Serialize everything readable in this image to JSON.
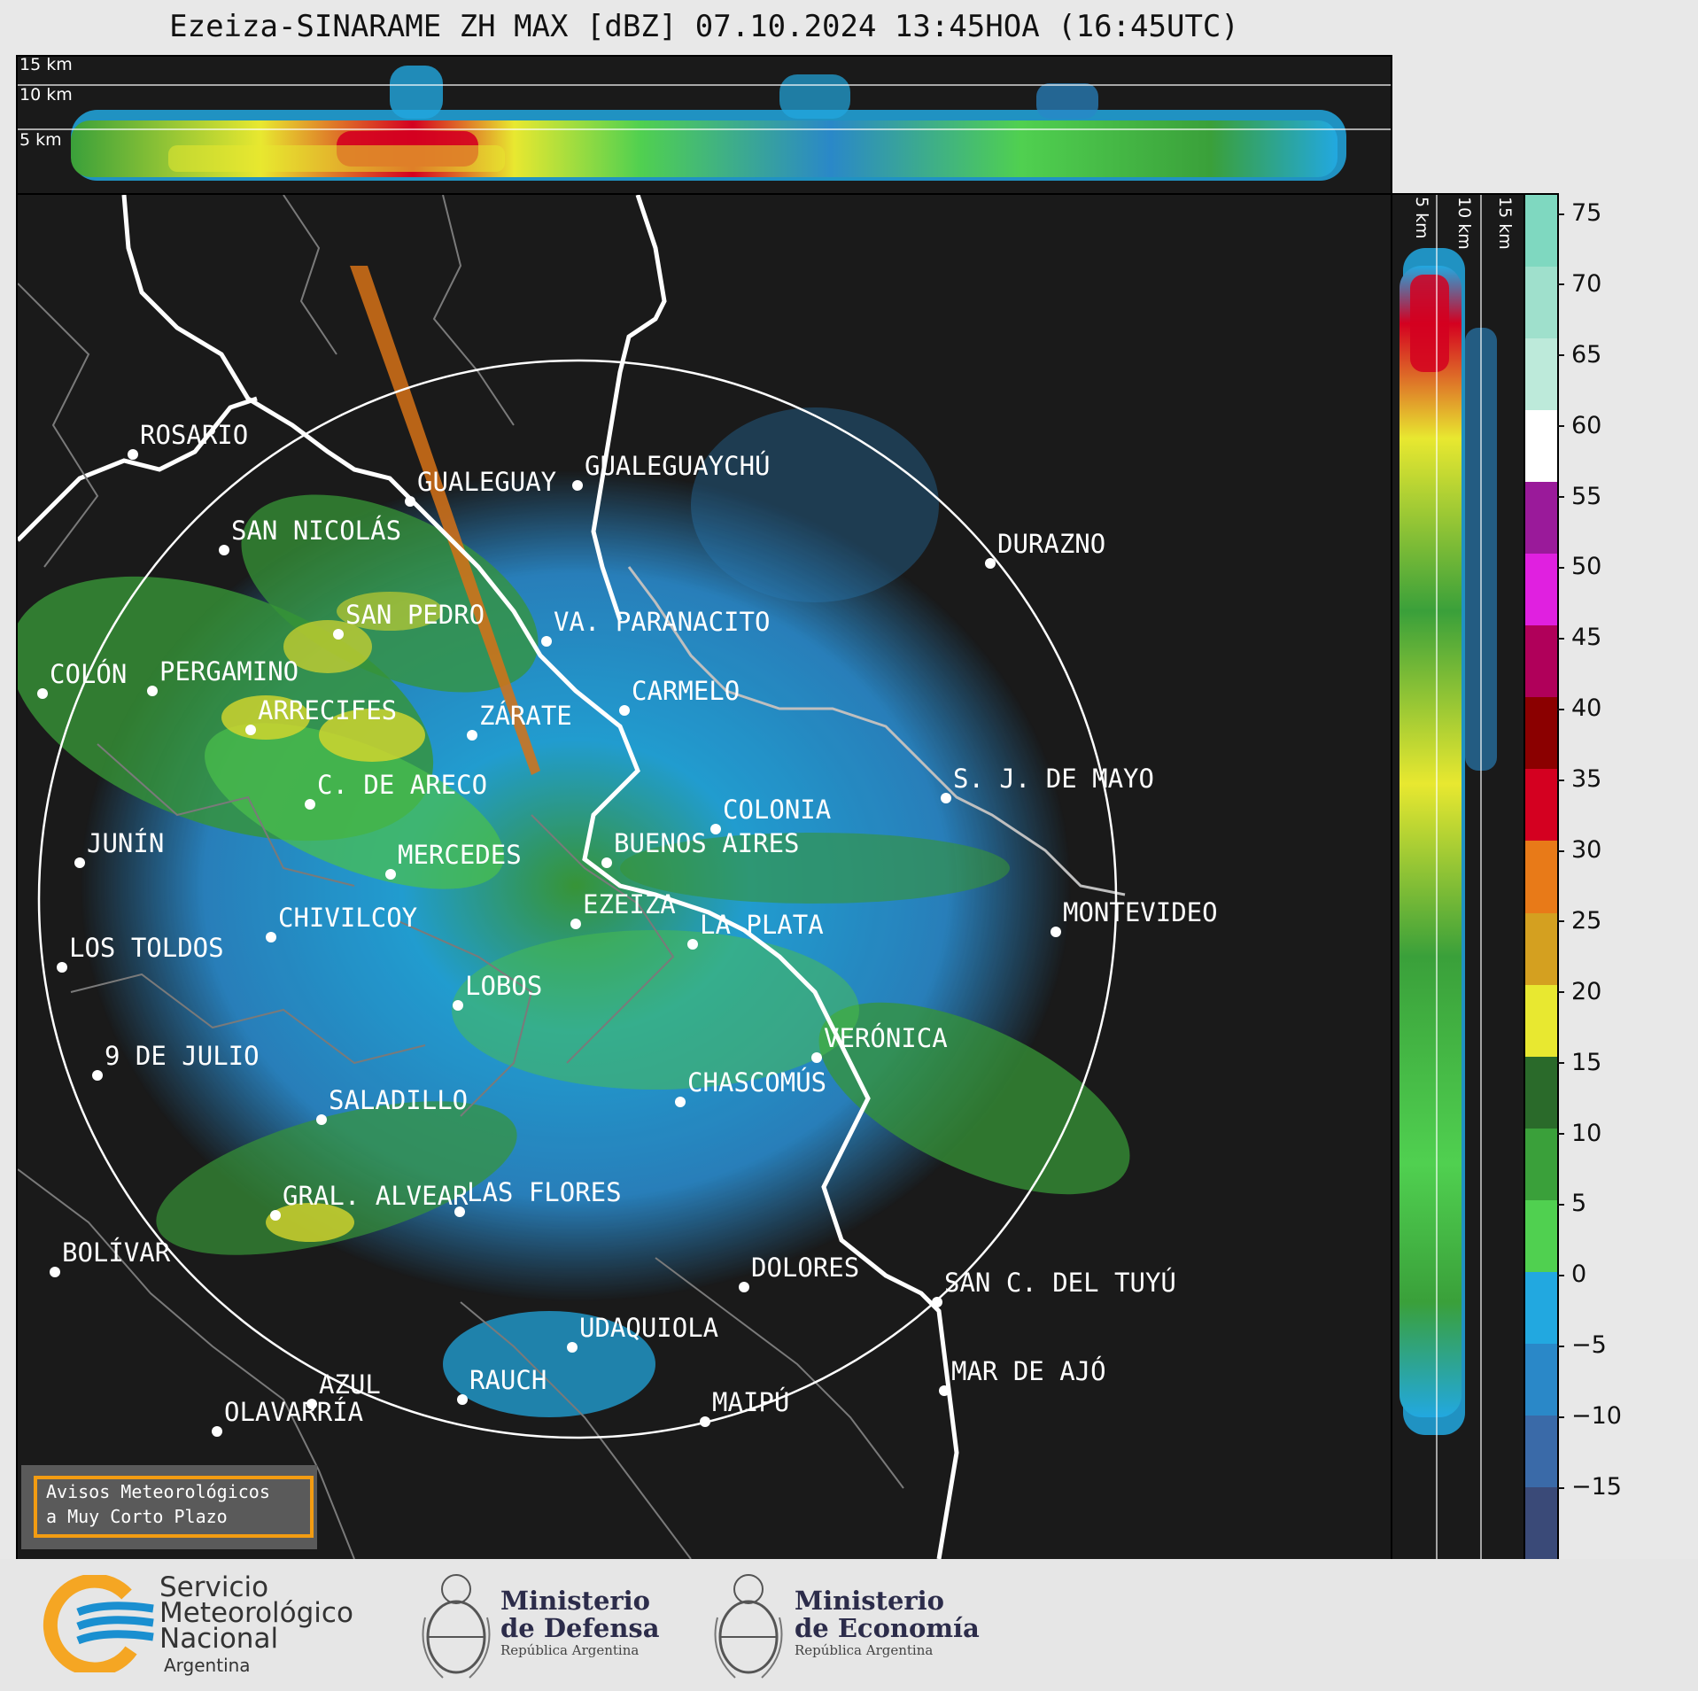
{
  "title": "Ezeiza-SINARAME ZH MAX [dBZ] 07.10.2024 13:45HOA (16:45UTC)",
  "height_labels": {
    "h15": "15 km",
    "h10": "10 km",
    "h5": "5 km"
  },
  "cities": [
    {
      "id": "rosario",
      "label": "ROSARIO"
    },
    {
      "id": "gualeguaychu",
      "label": "GUALEGUAYCHÚ"
    },
    {
      "id": "gualeguay",
      "label": "GUALEGUAY"
    },
    {
      "id": "san-nicolas",
      "label": "SAN NICOLÁS"
    },
    {
      "id": "durazno",
      "label": "DURAZNO"
    },
    {
      "id": "san-pedro",
      "label": "SAN PEDRO"
    },
    {
      "id": "va-paranacito",
      "label": "VA. PARANACITO"
    },
    {
      "id": "colon",
      "label": "COLÓN"
    },
    {
      "id": "pergamino",
      "label": "PERGAMINO"
    },
    {
      "id": "carmelo",
      "label": "CARMELO"
    },
    {
      "id": "arrecifes",
      "label": "ARRECIFES"
    },
    {
      "id": "zarate",
      "label": "ZÁRATE"
    },
    {
      "id": "sj-de-mayo",
      "label": "S. J. DE MAYO"
    },
    {
      "id": "c-de-areco",
      "label": "C. DE ARECO"
    },
    {
      "id": "colonia",
      "label": "COLONIA"
    },
    {
      "id": "junin",
      "label": "JUNÍN"
    },
    {
      "id": "buenos-aires",
      "label": "BUENOS AIRES"
    },
    {
      "id": "mercedes",
      "label": "MERCEDES"
    },
    {
      "id": "ezeiza",
      "label": "EZEIZA"
    },
    {
      "id": "montevideo",
      "label": "MONTEVIDEO"
    },
    {
      "id": "chivilcoy",
      "label": "CHIVILCOY"
    },
    {
      "id": "la-plata",
      "label": "LA PLATA"
    },
    {
      "id": "los-toldos",
      "label": "LOS TOLDOS"
    },
    {
      "id": "lobos",
      "label": "LOBOS"
    },
    {
      "id": "veronica",
      "label": "VERÓNICA"
    },
    {
      "id": "9-de-julio",
      "label": "9 DE JULIO"
    },
    {
      "id": "chascomus",
      "label": "CHASCOMÚS"
    },
    {
      "id": "saladillo",
      "label": "SALADILLO"
    },
    {
      "id": "gral-alvear",
      "label": "GRAL. ALVEAR"
    },
    {
      "id": "las-flores",
      "label": "LAS FLORES"
    },
    {
      "id": "bolivar",
      "label": "BOLÍVAR"
    },
    {
      "id": "dolores",
      "label": "DOLORES"
    },
    {
      "id": "san-c-del-tuyu",
      "label": "SAN C. DEL TUYÚ"
    },
    {
      "id": "udaquiola",
      "label": "UDAQUIOLA"
    },
    {
      "id": "mar-de-ajo",
      "label": "MAR DE AJÓ"
    },
    {
      "id": "rauch",
      "label": "RAUCH"
    },
    {
      "id": "azul",
      "label": "AZUL"
    },
    {
      "id": "maipu",
      "label": "MAIPÚ"
    },
    {
      "id": "olavarria",
      "label": "OLAVARRÍA"
    }
  ],
  "colorbar": {
    "ticks": [
      "75",
      "70",
      "65",
      "60",
      "55",
      "50",
      "45",
      "40",
      "35",
      "30",
      "25",
      "20",
      "15",
      "10",
      "5",
      "0",
      "−5",
      "−10",
      "−15"
    ],
    "colors": [
      "#7fd8c0",
      "#9fe0cc",
      "#bdeada",
      "#ffffff",
      "#9a1a9a",
      "#e020e0",
      "#b0005a",
      "#8b0000",
      "#d40020",
      "#e87a18",
      "#d4a020",
      "#e8e830",
      "#2a6a2a",
      "#3aa03a",
      "#50d050",
      "#22a8e0",
      "#2a88c8",
      "#3a6aa8",
      "#3a4a78"
    ]
  },
  "avisos": {
    "line1": "Avisos Meteorológicos",
    "line2": "a Muy Corto Plazo"
  },
  "footer": {
    "smn": {
      "line1": "Servicio",
      "line2": "Meteorológico",
      "line3": "Nacional",
      "country": "Argentina"
    },
    "defensa": {
      "line1": "Ministerio",
      "line2": "de Defensa",
      "sub": "República Argentina"
    },
    "economia": {
      "line1": "Ministerio",
      "line2": "de Economía",
      "sub": "República Argentina"
    }
  }
}
